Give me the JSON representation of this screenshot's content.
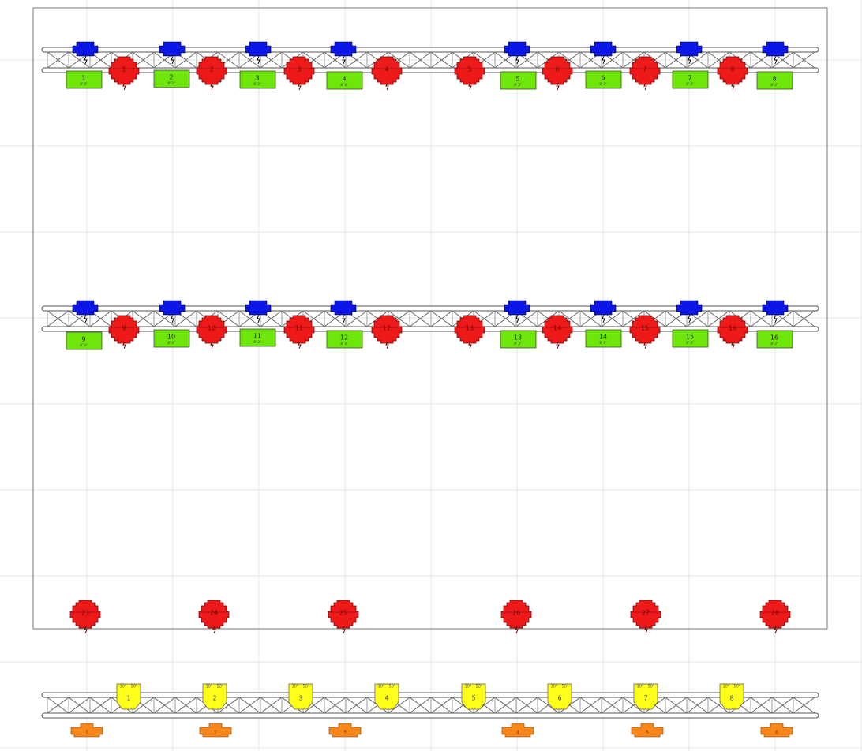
{
  "electrics": [
    {
      "red_labels": [
        "1",
        "2",
        "3",
        "4",
        "5",
        "6",
        "7",
        "8"
      ],
      "tags": [
        {
          "label": "1",
          "sub": "8' 3\""
        },
        {
          "label": "2",
          "sub": "8' 3\""
        },
        {
          "label": "3",
          "sub": "8' 3\""
        },
        {
          "label": "4",
          "sub": "8' 3\""
        },
        {
          "label": "5",
          "sub": "8' 3\""
        },
        {
          "label": "6",
          "sub": "8' 3\""
        },
        {
          "label": "7",
          "sub": "8' 3\""
        },
        {
          "label": "8",
          "sub": "8' 3\""
        }
      ]
    },
    {
      "red_labels": [
        "9",
        "10",
        "11",
        "12",
        "13",
        "14",
        "15",
        "16"
      ],
      "tags": [
        {
          "label": "9",
          "sub": "8' 3\""
        },
        {
          "label": "10",
          "sub": "8' 3\""
        },
        {
          "label": "11",
          "sub": "8' 3\""
        },
        {
          "label": "12",
          "sub": "8' 3\""
        },
        {
          "label": "13",
          "sub": "8' 3\""
        },
        {
          "label": "14",
          "sub": "8' 3\""
        },
        {
          "label": "15",
          "sub": "8' 3\""
        },
        {
          "label": "16",
          "sub": "8' 3\""
        }
      ]
    }
  ],
  "floor": {
    "red_labels": [
      "23",
      "24",
      "25",
      "26",
      "27",
      "28"
    ]
  },
  "lower_truss": {
    "yellow": [
      {
        "label": "1",
        "beam": "10°",
        "field": "50°"
      },
      {
        "label": "2",
        "beam": "10°",
        "field": "50°"
      },
      {
        "label": "3",
        "beam": "10°",
        "field": "50°"
      },
      {
        "label": "4",
        "beam": "10°",
        "field": "50°"
      },
      {
        "label": "5",
        "beam": "10°",
        "field": "50°"
      },
      {
        "label": "6",
        "beam": "10°",
        "field": "50°"
      },
      {
        "label": "7",
        "beam": "10°",
        "field": "50°"
      },
      {
        "label": "8",
        "beam": "10°",
        "field": "50°"
      }
    ],
    "orange": [
      "1",
      "2",
      "3",
      "4",
      "5",
      "6"
    ]
  }
}
